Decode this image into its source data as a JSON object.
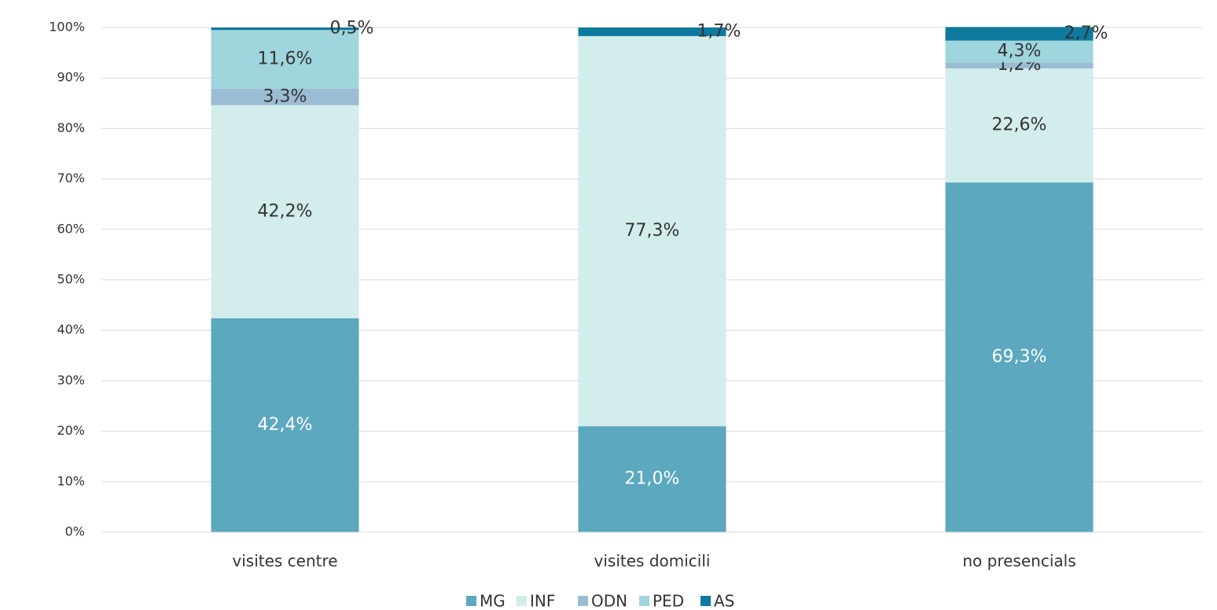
{
  "chart_data": {
    "type": "stacked_bar",
    "categories": [
      "visites centre",
      "visites domicili",
      "no presencials"
    ],
    "series": [
      {
        "name": "MG",
        "color": "#5ba8bf",
        "values": [
          42.4,
          21.0,
          69.3
        ],
        "value_labels": [
          "42,4%",
          "21,0%",
          "69,3%"
        ]
      },
      {
        "name": "INF",
        "color": "#d3ecec",
        "values": [
          42.2,
          77.3,
          22.6
        ],
        "value_labels": [
          "42,2%",
          "77,3%",
          "22,6%"
        ]
      },
      {
        "name": "ODN",
        "color": "#9bbdd3",
        "values": [
          3.3,
          0,
          1.2
        ],
        "value_labels": [
          "3,3%",
          null,
          "1,2%"
        ]
      },
      {
        "name": "PED",
        "color": "#9fd5dc",
        "values": [
          11.6,
          0,
          4.3
        ],
        "value_labels": [
          "11,6%",
          null,
          "4,3%"
        ]
      },
      {
        "name": "AS",
        "color": "#0e7a9e",
        "values": [
          0.5,
          1.7,
          2.7
        ],
        "value_labels": [
          "0,5%",
          "1,7%",
          "2,7%"
        ]
      }
    ],
    "ylim": [
      0,
      100
    ],
    "yticks": [
      {
        "value": 0,
        "label": "0%"
      },
      {
        "value": 10,
        "label": "10%"
      },
      {
        "value": 20,
        "label": "20%"
      },
      {
        "value": 30,
        "label": "30%"
      },
      {
        "value": 40,
        "label": "40%"
      },
      {
        "value": 50,
        "label": "50%"
      },
      {
        "value": 60,
        "label": "60%"
      },
      {
        "value": 70,
        "label": "70%"
      },
      {
        "value": 80,
        "label": "80%"
      },
      {
        "value": 90,
        "label": "90%"
      },
      {
        "value": 100,
        "label": "100%"
      }
    ],
    "grid": true,
    "legend": "bottom"
  }
}
